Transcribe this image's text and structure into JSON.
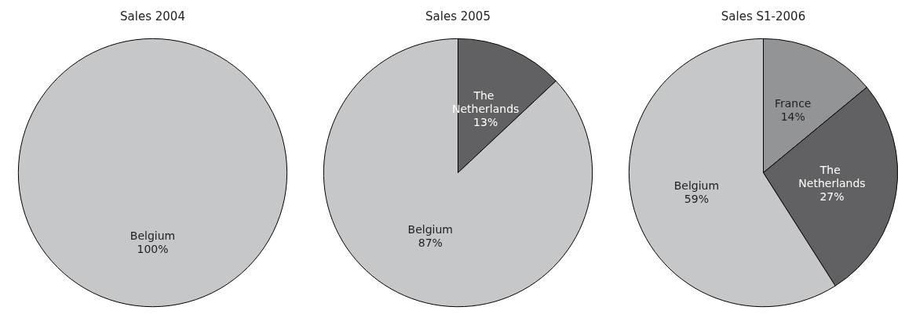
{
  "chart_data": [
    {
      "type": "pie",
      "title": "Sales 2004",
      "categories": [
        "Belgium"
      ],
      "values": [
        100
      ],
      "value_labels": [
        "100%"
      ],
      "colors": [
        "#c6c7c9"
      ]
    },
    {
      "type": "pie",
      "title": "Sales 2005",
      "categories": [
        "The Netherlands",
        "Belgium"
      ],
      "values": [
        13,
        87
      ],
      "value_labels": [
        "13%",
        "87%"
      ],
      "colors": [
        "#616163",
        "#c6c7c9"
      ]
    },
    {
      "type": "pie",
      "title": "Sales S1-2006",
      "categories": [
        "France",
        "The Netherlands",
        "Belgium"
      ],
      "values": [
        14,
        27,
        59
      ],
      "value_labels": [
        "14%",
        "27%",
        "59%"
      ],
      "colors": [
        "#939496",
        "#616163",
        "#c6c7c9"
      ]
    }
  ]
}
